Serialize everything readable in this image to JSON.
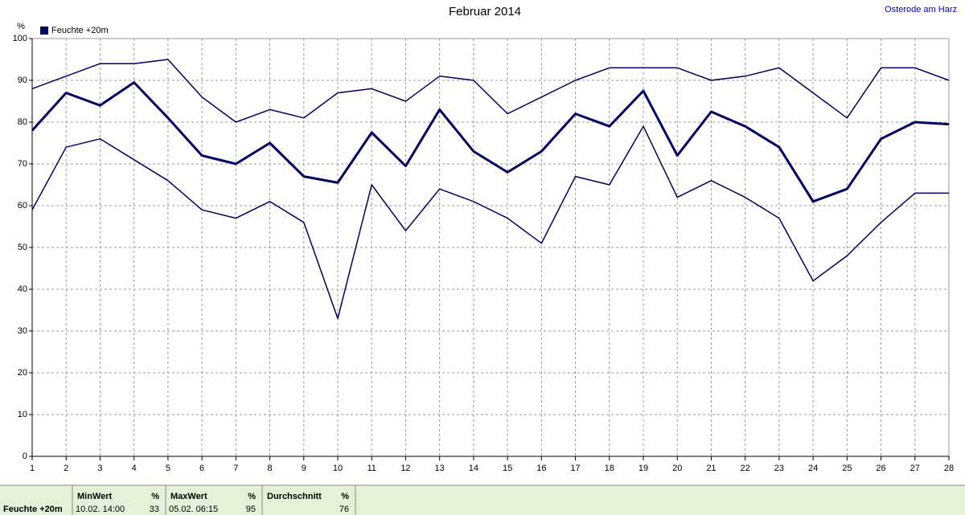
{
  "chart_data": {
    "type": "line",
    "title": "Februar 2014",
    "location": "Osterode am Harz",
    "y_unit": "%",
    "x": [
      1,
      2,
      3,
      4,
      5,
      6,
      7,
      8,
      9,
      10,
      11,
      12,
      13,
      14,
      15,
      16,
      17,
      18,
      19,
      20,
      21,
      22,
      23,
      24,
      25,
      26,
      27,
      28
    ],
    "xlim": [
      1,
      28
    ],
    "xticks": [
      1,
      2,
      3,
      4,
      5,
      6,
      7,
      8,
      9,
      10,
      11,
      12,
      13,
      14,
      15,
      16,
      17,
      18,
      19,
      20,
      21,
      22,
      23,
      24,
      25,
      26,
      27,
      28
    ],
    "ylim": [
      0,
      100
    ],
    "yticks": [
      0,
      10,
      20,
      30,
      40,
      50,
      60,
      70,
      80,
      90,
      100
    ],
    "grid": true,
    "series": [
      {
        "name": "Feuchte +20m",
        "color": "#000066",
        "values": [
          78,
          87,
          84,
          89.5,
          81,
          72,
          70,
          75,
          67,
          65.5,
          77.5,
          69.5,
          83,
          73,
          68,
          73,
          82,
          79,
          87.5,
          72,
          82.5,
          79,
          74,
          61,
          64,
          76,
          80,
          79.5
        ]
      },
      {
        "color": "#000066",
        "values": [
          88,
          91,
          94,
          94,
          95,
          86,
          80,
          83,
          81,
          87,
          88,
          85,
          91,
          90,
          82,
          86,
          90,
          93,
          93,
          93,
          90,
          91,
          93,
          87,
          81,
          93,
          93,
          90
        ]
      },
      {
        "color": "#000066",
        "values": [
          59,
          74,
          76,
          71,
          66,
          59,
          57,
          61,
          56,
          33,
          65,
          54,
          64,
          61,
          57,
          51,
          67,
          65,
          79,
          62,
          66,
          62,
          57,
          42,
          48,
          56,
          63,
          63
        ]
      }
    ]
  },
  "table": {
    "row_label": "Feuchte +20m",
    "columns": [
      {
        "header": "MinWert",
        "unit": "%",
        "time": "10.02. 14:00",
        "value": 33
      },
      {
        "header": "MaxWert",
        "unit": "%",
        "time": "05.02. 06:15",
        "value": 95
      },
      {
        "header": "Durchschnitt",
        "unit": "%",
        "value": 76
      }
    ]
  }
}
